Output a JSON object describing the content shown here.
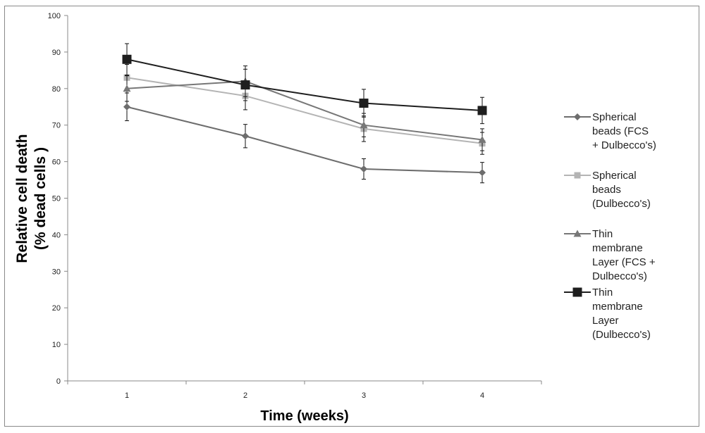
{
  "chart_data": {
    "type": "line",
    "title": "",
    "xlabel": "Time (weeks)",
    "ylabel_lines": [
      "Relative cell death",
      "(% dead cells )"
    ],
    "categories": [
      "1",
      "2",
      "3",
      "4"
    ],
    "ylim": [
      0,
      100
    ],
    "yticks": [
      0,
      10,
      20,
      30,
      40,
      50,
      60,
      70,
      80,
      90,
      100
    ],
    "grid": false,
    "legend_position": "right",
    "series": [
      {
        "name": "Spherical beads (FCS + Dulbecco's)",
        "legend_lines": [
          "Spherical",
          "beads (FCS",
          "+ Dulbecco's)"
        ],
        "marker": "diamond",
        "color": "#6d6d6d",
        "values": [
          75,
          67,
          58,
          57
        ],
        "error": [
          3.8,
          3.2,
          2.8,
          2.8
        ]
      },
      {
        "name": "Spherical beads (Dulbecco's)",
        "legend_lines": [
          "Spherical",
          "beads",
          "(Dulbecco's)"
        ],
        "marker": "square",
        "color": "#b4b4b4",
        "values": [
          83,
          78,
          69,
          65
        ],
        "error": [
          3.6,
          3.8,
          3.5,
          3.0
        ]
      },
      {
        "name": "Thin membrane Layer (FCS + Dulbecco's)",
        "legend_lines": [
          "Thin",
          "membrane",
          "Layer (FCS +",
          "Dulbecco's)"
        ],
        "marker": "triangle",
        "color": "#777777",
        "values": [
          80,
          82,
          70,
          66
        ],
        "error": [
          3.5,
          4.2,
          3.2,
          3.0
        ]
      },
      {
        "name": "Thin membrane Layer (Dulbecco's)",
        "legend_lines": [
          "Thin",
          "membrane",
          "Layer",
          "(Dulbecco's)"
        ],
        "marker": "square-large",
        "color": "#1e1e1e",
        "values": [
          88,
          81,
          76,
          74
        ],
        "error": [
          4.3,
          4.3,
          3.8,
          3.6
        ]
      }
    ]
  }
}
